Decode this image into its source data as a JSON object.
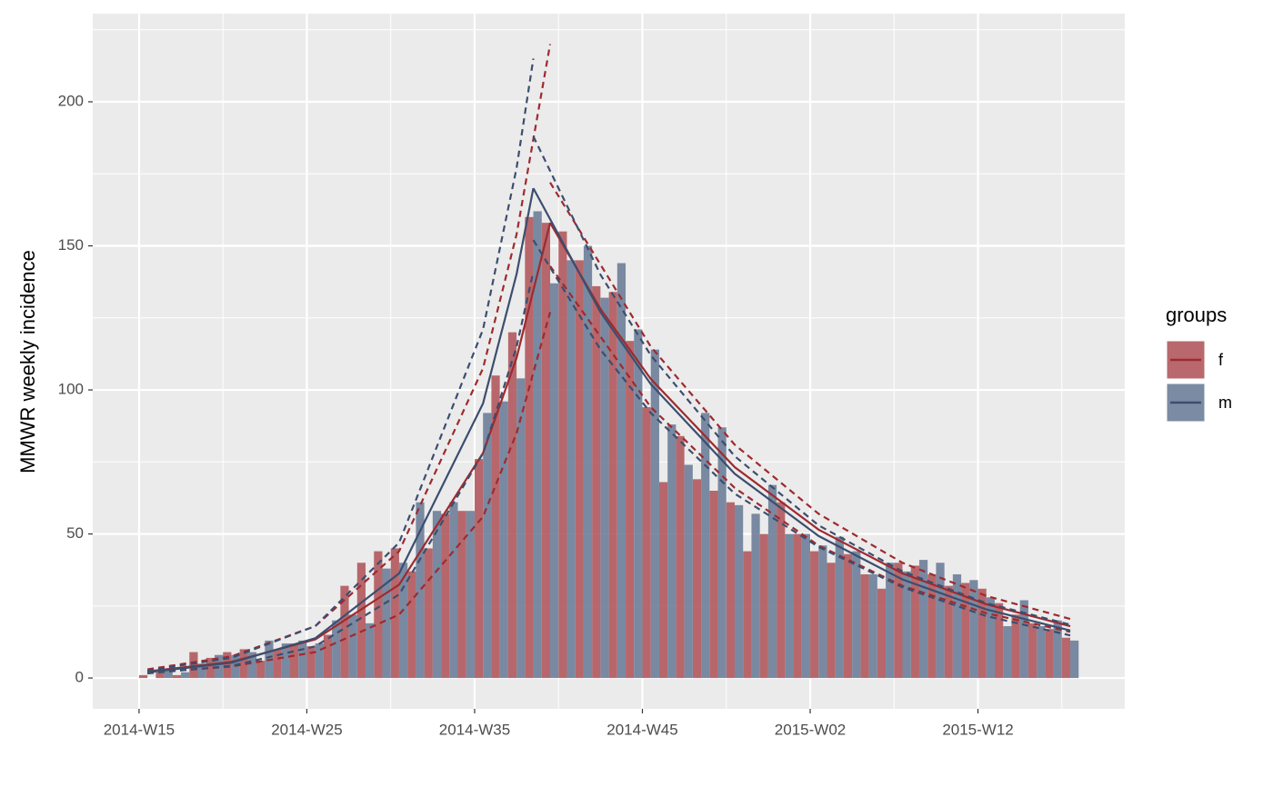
{
  "chart_data": {
    "type": "bar",
    "ylabel": "MMWR weekly incidence",
    "legend_title": "groups",
    "legend": "right",
    "grid": true,
    "x": [
      0,
      1,
      2,
      3,
      4,
      5,
      6,
      7,
      8,
      9,
      10,
      11,
      12,
      13,
      14,
      15,
      16,
      17,
      18,
      19,
      20,
      21,
      22,
      23,
      24,
      25,
      26,
      27,
      28,
      29,
      30,
      31,
      32,
      33,
      34,
      35,
      36,
      37,
      38,
      39,
      40,
      41,
      42,
      43,
      44,
      45,
      46,
      47,
      48,
      49,
      50,
      51,
      52,
      53,
      54,
      55
    ],
    "xlim": [
      -2.76,
      58.75
    ],
    "xticks": [
      {
        "value": 0,
        "label": "2014-W15"
      },
      {
        "value": 10,
        "label": "2014-W25"
      },
      {
        "value": 20,
        "label": "2014-W35"
      },
      {
        "value": 30,
        "label": "2014-W45"
      },
      {
        "value": 40,
        "label": "2015-W02"
      },
      {
        "value": 50,
        "label": "2015-W12"
      }
    ],
    "ylim": [
      -10.7,
      230.6
    ],
    "yticks": [
      0,
      50,
      100,
      150,
      200
    ],
    "series": [
      {
        "name": "f",
        "color": "#b1595d",
        "line_color": "#9e2a2f",
        "values": [
          1,
          2,
          1,
          9,
          7,
          9,
          10,
          6,
          10,
          12,
          11,
          15,
          32,
          40,
          44,
          45,
          37,
          45,
          57,
          58,
          76,
          105,
          120,
          160,
          158,
          155,
          145,
          136,
          134,
          117,
          94,
          68,
          84,
          69,
          65,
          61,
          44,
          50,
          61,
          50,
          44,
          40,
          43,
          36,
          31,
          40,
          39,
          36,
          32,
          33,
          31,
          26,
          22,
          19,
          17,
          14
        ]
      },
      {
        "name": "m",
        "color": "#6d7e99",
        "line_color": "#3c4e6f",
        "values": [
          0,
          3,
          2,
          5,
          8,
          8,
          9,
          13,
          12,
          13,
          12,
          20,
          22,
          19,
          38,
          40,
          61,
          58,
          61,
          58,
          92,
          96,
          104,
          162,
          137,
          145,
          150,
          132,
          144,
          121,
          114,
          88,
          74,
          92,
          87,
          60,
          57,
          67,
          50,
          50,
          46,
          49,
          44,
          36,
          40,
          37,
          41,
          40,
          36,
          34,
          28,
          18,
          27,
          18,
          20,
          13
        ]
      }
    ],
    "fits": [
      {
        "series": 0,
        "dash": false,
        "x": [
          0.5,
          5.5,
          10.5,
          15.5,
          20.5,
          22.5,
          24.5
        ],
        "values": [
          2.3,
          5.6,
          13.4,
          32.4,
          78.1,
          111.1,
          158
        ]
      },
      {
        "series": 0,
        "dash": false,
        "x": [
          24.5,
          27.5,
          30.5,
          35.5,
          40.5,
          45.5,
          50.5,
          55.5
        ],
        "values": [
          158,
          128.1,
          103.8,
          73.2,
          51.5,
          36.3,
          25.6,
          18
        ]
      },
      {
        "series": 0,
        "dash": true,
        "x": [
          0.5,
          5.5,
          10.5,
          15.5,
          20.5,
          22.5,
          24.5
        ],
        "values": [
          3,
          7.5,
          18,
          44,
          107.5,
          154,
          220
        ]
      },
      {
        "series": 0,
        "dash": true,
        "x": [
          0.5,
          5.5,
          10.5,
          15.5,
          20.5,
          22.5,
          24.5
        ],
        "values": [
          1.8,
          4,
          9,
          22,
          56,
          85,
          127
        ]
      },
      {
        "series": 0,
        "dash": true,
        "x": [
          24.5,
          30.5,
          35.5,
          40.5,
          45.5,
          50.5,
          55.5
        ],
        "values": [
          172,
          115,
          81,
          57,
          40,
          28.5,
          20.5
        ]
      },
      {
        "series": 0,
        "dash": true,
        "x": [
          24.5,
          30.5,
          35.5,
          40.5,
          45.5,
          50.5,
          55.5
        ],
        "values": [
          143,
          94,
          66,
          46,
          32,
          22.5,
          16
        ]
      },
      {
        "series": 1,
        "dash": false,
        "x": [
          0.5,
          5.5,
          10.5,
          15.5,
          20.5,
          22.5,
          23.5
        ],
        "values": [
          2,
          5.3,
          13.8,
          36.3,
          95.3,
          140.2,
          170
        ]
      },
      {
        "series": 1,
        "dash": false,
        "x": [
          23.5,
          27.5,
          30.5,
          35.5,
          40.5,
          45.5,
          50.5,
          55.5
        ],
        "values": [
          170,
          127,
          102,
          70.9,
          49.3,
          34.2,
          23.8,
          16.5
        ]
      },
      {
        "series": 1,
        "dash": true,
        "x": [
          0.5,
          5.5,
          10.5,
          15.5,
          20.5,
          22.5,
          23.5
        ],
        "values": [
          2.6,
          7,
          18,
          47,
          121,
          177,
          215
        ]
      },
      {
        "series": 1,
        "dash": true,
        "x": [
          0.5,
          5.5,
          10.5,
          15.5,
          20.5,
          22.5,
          23.5
        ],
        "values": [
          1.6,
          4.2,
          11,
          29,
          78,
          115,
          141
        ]
      },
      {
        "series": 1,
        "dash": true,
        "x": [
          23.5,
          27.5,
          30.5,
          35.5,
          40.5,
          45.5,
          50.5,
          55.5
        ],
        "values": [
          188,
          140,
          112,
          77,
          53,
          37,
          26,
          18.5
        ]
      },
      {
        "series": 1,
        "dash": true,
        "x": [
          23.5,
          27.5,
          30.5,
          35.5,
          40.5,
          45.5,
          50.5,
          55.5
        ],
        "values": [
          152,
          114,
          92,
          64,
          45.5,
          31.5,
          21.5,
          14.8
        ]
      }
    ]
  }
}
